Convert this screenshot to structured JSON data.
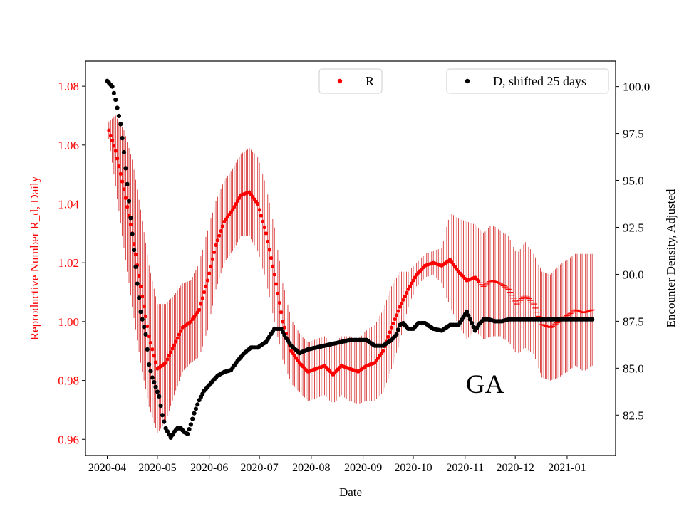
{
  "chart_data": {
    "type": "scatter",
    "state_label": "GA",
    "xlabel": "Date",
    "ylabel_left": "Reproductive Number R_d, Daily",
    "ylabel_right": "Encounter Density, Adjusted",
    "x_ticks": [
      "2020-04",
      "2020-05",
      "2020-06",
      "2020-07",
      "2020-08",
      "2020-09",
      "2020-10",
      "2020-11",
      "2020-12",
      "2021-01"
    ],
    "x_tick_days": [
      0,
      30,
      61,
      91,
      122,
      153,
      183,
      214,
      244,
      275
    ],
    "x_range_days": [
      -13,
      304
    ],
    "y_left_range": [
      0.9545,
      1.0885
    ],
    "y_left_ticks": [
      0.96,
      0.98,
      1.0,
      1.02,
      1.04,
      1.06,
      1.08
    ],
    "y_left_tick_labels": [
      "0.96",
      "0.98",
      "1.00",
      "1.02",
      "1.04",
      "1.06",
      "1.08"
    ],
    "y_right_range": [
      80.35,
      101.35
    ],
    "y_right_ticks": [
      82.5,
      85.0,
      87.5,
      90.0,
      92.5,
      95.0,
      97.5,
      100.0
    ],
    "y_right_tick_labels": [
      "82.5",
      "85.0",
      "87.5",
      "90.0",
      "92.5",
      "95.0",
      "97.5",
      "100.0"
    ],
    "estimate_cutoff_day": 222,
    "series": [
      {
        "name": "R",
        "axis": "left",
        "color": "#ff0000",
        "legend_label": "R",
        "anchors_day": [
          1,
          5,
          10,
          15,
          20,
          25,
          30,
          35,
          40,
          45,
          50,
          55,
          60,
          65,
          70,
          75,
          80,
          85,
          90,
          95,
          100,
          105,
          110,
          115,
          120,
          125,
          130,
          135,
          140,
          145,
          150,
          155,
          160,
          165,
          170,
          175,
          180,
          185,
          190,
          195,
          200,
          205,
          210,
          215,
          220,
          225,
          230,
          235,
          240,
          245,
          250,
          255,
          260,
          265,
          270,
          275,
          280,
          285,
          290
        ],
        "anchors_value": [
          1.065,
          1.058,
          1.045,
          1.03,
          1.012,
          0.995,
          0.984,
          0.986,
          0.992,
          0.998,
          1.0,
          1.004,
          1.014,
          1.026,
          1.034,
          1.038,
          1.043,
          1.044,
          1.04,
          1.03,
          1.016,
          1.0,
          0.99,
          0.986,
          0.983,
          0.984,
          0.985,
          0.982,
          0.985,
          0.984,
          0.983,
          0.985,
          0.986,
          0.99,
          0.998,
          1.005,
          1.011,
          1.016,
          1.019,
          1.02,
          1.019,
          1.021,
          1.017,
          1.014,
          1.015,
          1.012,
          1.014,
          1.013,
          1.011,
          1.006,
          1.009,
          1.006,
          0.999,
          0.998,
          1.0,
          1.002,
          1.004,
          1.003,
          1.004
        ],
        "anchors_err": [
          0.003,
          0.012,
          0.02,
          0.025,
          0.026,
          0.024,
          0.022,
          0.02,
          0.017,
          0.015,
          0.014,
          0.016,
          0.017,
          0.015,
          0.014,
          0.014,
          0.014,
          0.015,
          0.016,
          0.016,
          0.016,
          0.013,
          0.011,
          0.01,
          0.01,
          0.01,
          0.01,
          0.01,
          0.01,
          0.011,
          0.011,
          0.012,
          0.013,
          0.014,
          0.014,
          0.012,
          0.006,
          0.004,
          0.004,
          0.004,
          0.006,
          0.016,
          0.018,
          0.02,
          0.018,
          0.018,
          0.019,
          0.018,
          0.018,
          0.017,
          0.018,
          0.017,
          0.018,
          0.018,
          0.019,
          0.019,
          0.019,
          0.02,
          0.019
        ],
        "end_day": 290
      },
      {
        "name": "D, shifted 25 days",
        "axis": "right",
        "color": "#000000",
        "legend_label": "D, shifted 25 days",
        "anchors_day": [
          0,
          3,
          5,
          8,
          10,
          12,
          14,
          16,
          18,
          20,
          23,
          25,
          27,
          29,
          31,
          33,
          35,
          38,
          40,
          42,
          44,
          46,
          48,
          50,
          52,
          55,
          58,
          60,
          63,
          66,
          70,
          74,
          78,
          82,
          86,
          90,
          95,
          100,
          104,
          107,
          110,
          115,
          120,
          125,
          130,
          135,
          140,
          145,
          150,
          155,
          160,
          165,
          170,
          173,
          175,
          177,
          180,
          183,
          186,
          190,
          195,
          200,
          205,
          210,
          215,
          218,
          220,
          222,
          225,
          228,
          232,
          236,
          240,
          245,
          250,
          260,
          270,
          280,
          290
        ],
        "anchors_value": [
          100.3,
          100.0,
          99.3,
          98.0,
          96.5,
          94.8,
          93.0,
          91.3,
          89.5,
          88.0,
          86.8,
          85.2,
          84.5,
          84.0,
          83.5,
          82.5,
          81.8,
          81.3,
          81.6,
          81.8,
          81.8,
          81.6,
          81.5,
          82.0,
          82.6,
          83.3,
          83.8,
          84.0,
          84.3,
          84.6,
          84.8,
          84.9,
          85.4,
          85.8,
          86.1,
          86.1,
          86.4,
          87.1,
          87.1,
          86.6,
          86.2,
          85.8,
          86.0,
          86.1,
          86.2,
          86.3,
          86.4,
          86.5,
          86.5,
          86.5,
          86.2,
          86.2,
          86.5,
          86.8,
          87.3,
          87.4,
          87.1,
          87.1,
          87.4,
          87.4,
          87.1,
          87.0,
          87.3,
          87.3,
          88.0,
          87.4,
          87.0,
          87.3,
          87.6,
          87.6,
          87.5,
          87.5,
          87.6,
          87.6,
          87.6,
          87.6,
          87.6,
          87.6,
          87.6
        ],
        "end_day": 290
      }
    ]
  }
}
